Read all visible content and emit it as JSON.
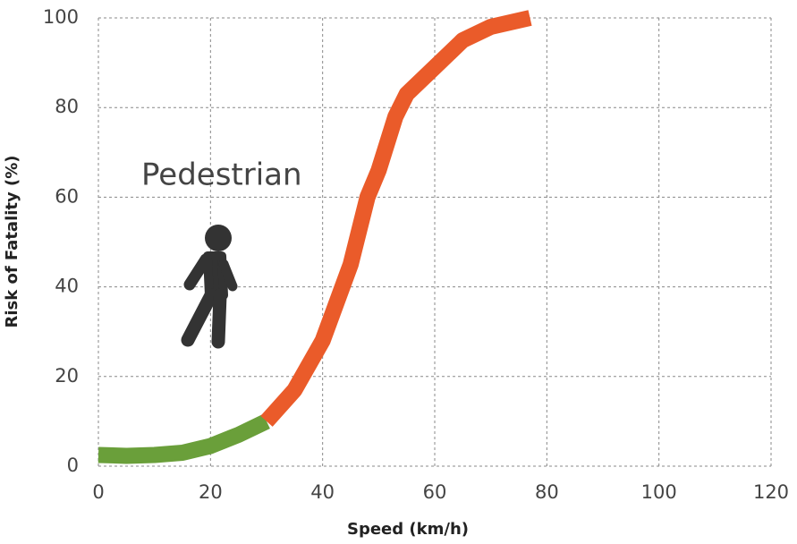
{
  "chart_data": {
    "type": "line",
    "xlabel": "Speed (km/h)",
    "ylabel": "Risk of Fatality (%)",
    "annotation": "Pedestrian",
    "series": [
      {
        "color": "#6a9f3a",
        "x": [
          0,
          5,
          10,
          15,
          20,
          25,
          30
        ],
        "values": [
          2.5,
          2.3,
          2.5,
          3,
          4.5,
          7,
          10
        ]
      },
      {
        "color": "#ea5b2a",
        "x": [
          30,
          35,
          40,
          45,
          48,
          50,
          53,
          55,
          60,
          65,
          70,
          77
        ],
        "values": [
          10,
          17,
          28,
          45,
          60,
          66,
          78,
          83,
          89,
          95,
          98,
          100
        ]
      }
    ],
    "xlim": [
      0,
      120
    ],
    "xticks": [
      0,
      20,
      40,
      60,
      80,
      100,
      120
    ],
    "ylim": [
      0,
      100
    ],
    "yticks": [
      0,
      20,
      40,
      60,
      80,
      100
    ],
    "grid": true
  }
}
